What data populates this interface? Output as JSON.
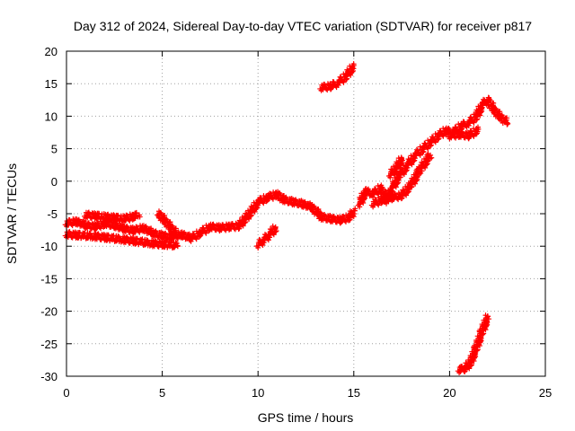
{
  "chart_data": {
    "type": "scatter",
    "title": "Day 312 of 2024, Sidereal Day-to-day VTEC variation (SDTVAR) for receiver p817",
    "xlabel": "GPS time / hours",
    "ylabel": "SDTVAR / TECUs",
    "xlim": [
      0,
      25
    ],
    "ylim": [
      -30,
      20
    ],
    "xticks": [
      "0",
      "5",
      "10",
      "15",
      "20",
      "25"
    ],
    "yticks": [
      "20",
      "15",
      "10",
      "5",
      "0",
      "-5",
      "-10",
      "-15",
      "-20",
      "-25",
      "-30"
    ],
    "grid": true,
    "marker": "plus",
    "series_color": "#ff0000",
    "series": [
      {
        "name": "SDTVAR",
        "segments": [
          [
            [
              0.0,
              -6.5
            ],
            [
              0.5,
              -6.2
            ],
            [
              1.0,
              -6.8
            ],
            [
              1.5,
              -7.0
            ],
            [
              2.0,
              -6.5
            ],
            [
              2.5,
              -6.8
            ],
            [
              3.0,
              -7.3
            ],
            [
              3.5,
              -7.6
            ],
            [
              4.0,
              -7.2
            ],
            [
              4.5,
              -8.0
            ],
            [
              5.0,
              -8.4
            ],
            [
              5.5,
              -8.6
            ],
            [
              6.0,
              -8.2
            ],
            [
              6.5,
              -8.8
            ],
            [
              7.0,
              -7.9
            ],
            [
              7.5,
              -7.0
            ],
            [
              8.0,
              -7.2
            ],
            [
              8.5,
              -7.0
            ],
            [
              9.0,
              -6.9
            ],
            [
              9.3,
              -5.8
            ],
            [
              9.6,
              -4.8
            ],
            [
              10.0,
              -3.2
            ],
            [
              10.5,
              -2.5
            ],
            [
              11.0,
              -2.0
            ],
            [
              11.3,
              -2.8
            ],
            [
              11.8,
              -3.2
            ],
            [
              12.3,
              -3.5
            ],
            [
              12.8,
              -4.0
            ],
            [
              13.3,
              -5.5
            ],
            [
              13.8,
              -5.8
            ],
            [
              14.3,
              -6.0
            ],
            [
              14.8,
              -5.5
            ],
            [
              15.0,
              -4.5
            ]
          ],
          [
            [
              4.8,
              -5.0
            ],
            [
              5.1,
              -6.0
            ],
            [
              5.4,
              -7.0
            ],
            [
              5.7,
              -8.0
            ]
          ],
          [
            [
              1.0,
              -5.2
            ],
            [
              2.0,
              -5.5
            ],
            [
              3.0,
              -5.8
            ],
            [
              3.8,
              -5.2
            ]
          ],
          [
            [
              0.0,
              -8.2
            ],
            [
              1.5,
              -8.5
            ],
            [
              3.0,
              -9.0
            ],
            [
              4.5,
              -9.6
            ],
            [
              5.8,
              -9.9
            ]
          ],
          [
            [
              10.0,
              -9.8
            ],
            [
              10.3,
              -9.0
            ],
            [
              10.6,
              -8.2
            ],
            [
              10.9,
              -7.2
            ]
          ],
          [
            [
              13.3,
              14.4
            ],
            [
              13.8,
              14.6
            ],
            [
              14.2,
              15.2
            ],
            [
              14.6,
              16.2
            ],
            [
              15.0,
              17.8
            ]
          ],
          [
            [
              15.3,
              -3.5
            ],
            [
              15.6,
              -1.5
            ],
            [
              16.0,
              -2.0
            ],
            [
              16.4,
              -1.0
            ],
            [
              16.7,
              -3.0
            ],
            [
              17.0,
              -1.0
            ],
            [
              17.4,
              1.0
            ],
            [
              17.8,
              2.5
            ],
            [
              18.2,
              4.0
            ],
            [
              18.6,
              5.0
            ],
            [
              19.0,
              6.0
            ],
            [
              19.4,
              7.0
            ],
            [
              19.8,
              7.8
            ],
            [
              20.2,
              7.5
            ],
            [
              20.6,
              8.5
            ],
            [
              21.0,
              9.0
            ],
            [
              21.4,
              10.0
            ],
            [
              21.7,
              11.8
            ],
            [
              22.0,
              12.5
            ],
            [
              22.3,
              11.0
            ],
            [
              22.6,
              10.0
            ],
            [
              23.0,
              9.0
            ]
          ],
          [
            [
              16.0,
              -3.5
            ],
            [
              16.5,
              -2.8
            ],
            [
              17.0,
              -2.5
            ],
            [
              17.5,
              -2.2
            ],
            [
              18.0,
              -0.5
            ],
            [
              18.5,
              2.0
            ],
            [
              19.0,
              4.0
            ]
          ],
          [
            [
              16.9,
              1.0
            ],
            [
              17.2,
              2.0
            ],
            [
              17.5,
              3.5
            ]
          ],
          [
            [
              20.0,
              7.0
            ],
            [
              20.5,
              7.2
            ],
            [
              21.0,
              7.0
            ],
            [
              21.5,
              8.0
            ]
          ],
          [
            [
              20.5,
              -29.0
            ],
            [
              20.8,
              -28.8
            ],
            [
              21.1,
              -27.8
            ],
            [
              21.4,
              -25.5
            ],
            [
              21.7,
              -23.0
            ],
            [
              22.0,
              -20.8
            ]
          ]
        ]
      }
    ]
  }
}
